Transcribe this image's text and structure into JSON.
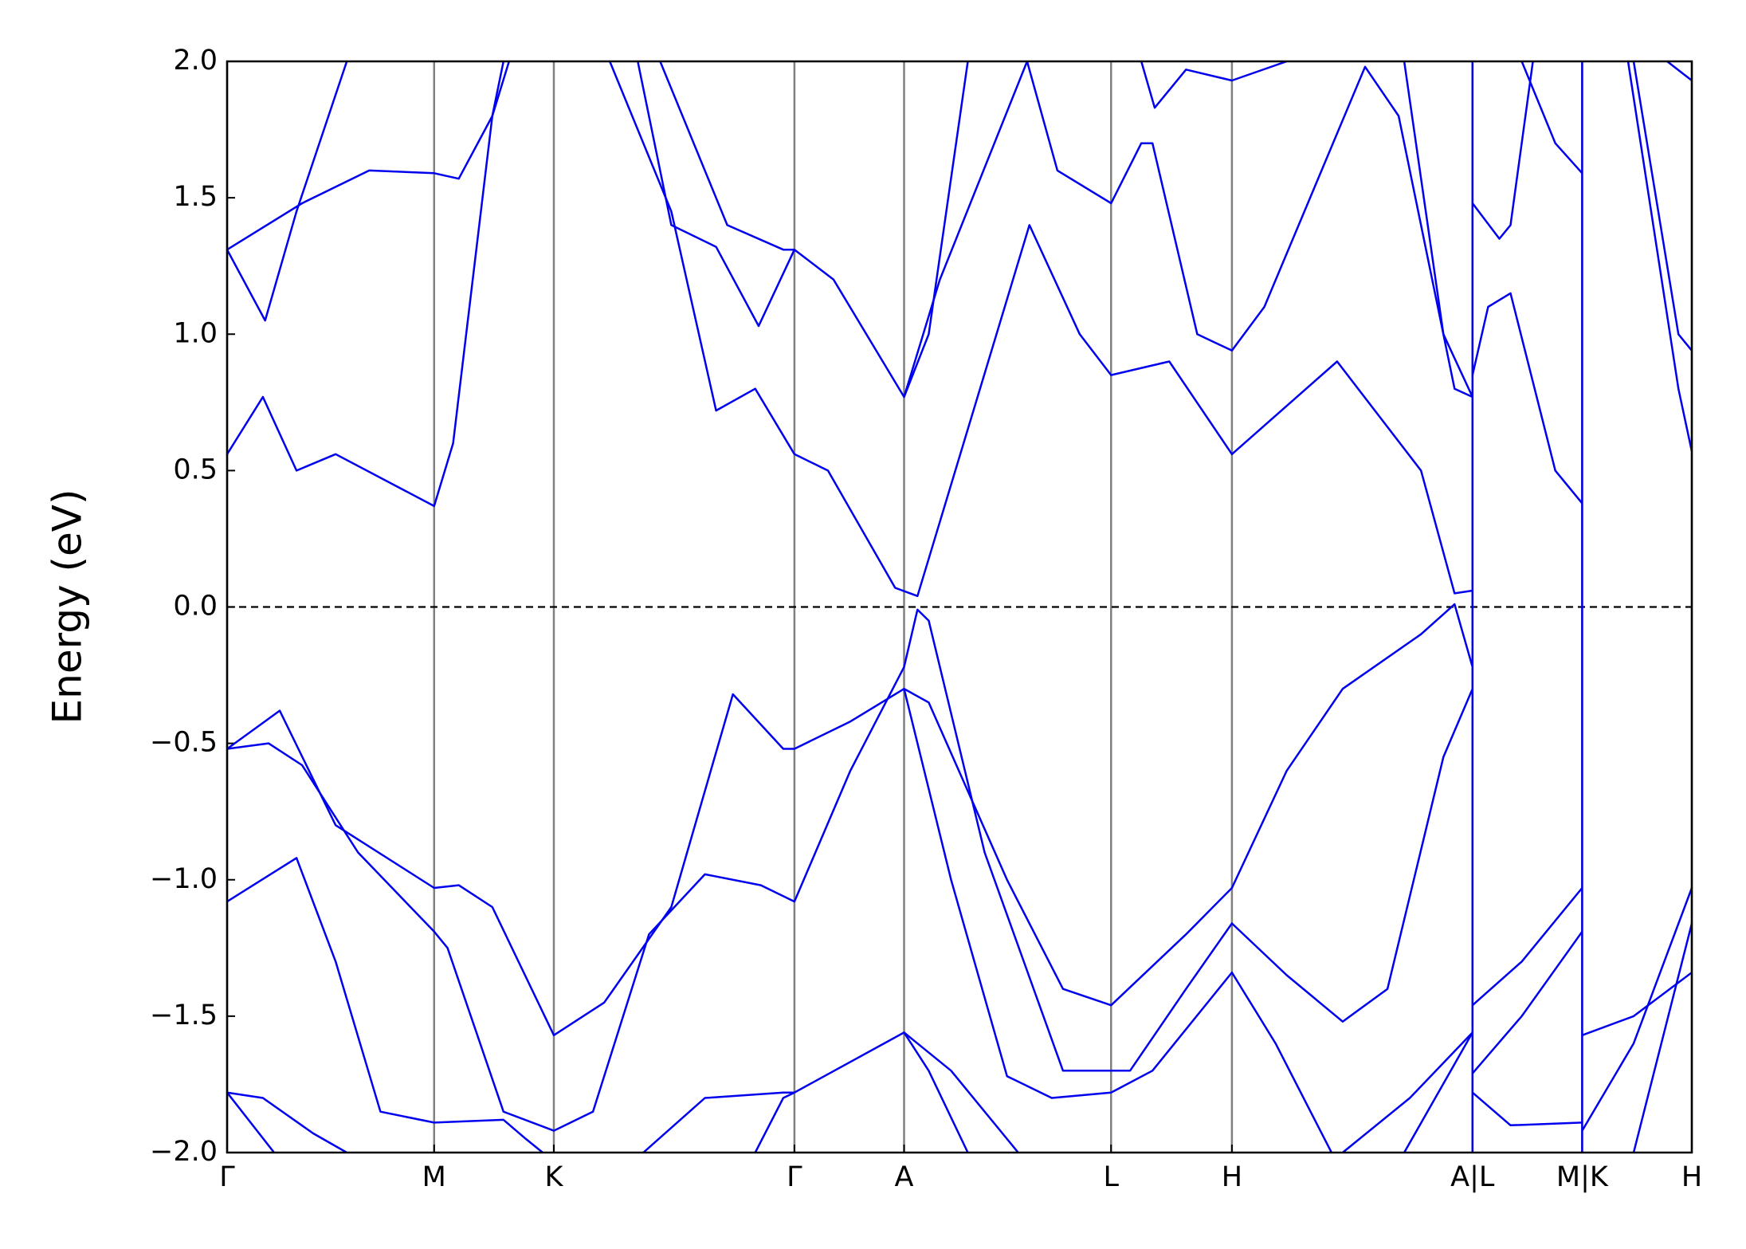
{
  "chart_data": {
    "type": "line",
    "ylabel": "Energy (eV)",
    "color": "#0000ee",
    "grid_color": "#808080",
    "xgrid": true,
    "fermi_level": 0,
    "xlim": [
      0,
      1.309
    ],
    "ylim": [
      -2.0,
      2.0
    ],
    "xticks": [
      {
        "value": 0,
        "label": "Γ"
      },
      {
        "value": 0.185,
        "label": "M"
      },
      {
        "value": 0.292,
        "label": "K"
      },
      {
        "value": 0.507,
        "label": "Γ"
      },
      {
        "value": 0.605,
        "label": "A"
      },
      {
        "value": 0.79,
        "label": "L"
      },
      {
        "value": 0.898,
        "label": "H"
      },
      {
        "value": 1.113,
        "label": "A|L"
      },
      {
        "value": 1.211,
        "label": "M|K"
      },
      {
        "value": 1.309,
        "label": "H"
      }
    ],
    "yticks": [
      {
        "value": 2.0,
        "label": "2.0"
      },
      1.5,
      {
        "value": 1.0,
        "label": "1.0"
      },
      0.5,
      {
        "value": 0.0,
        "label": "0.0"
      },
      {
        "value": -0.5,
        "label": "−0.5"
      },
      {
        "value": -1.0,
        "label": "−1.0"
      },
      {
        "value": -1.5,
        "label": "−1.5"
      },
      {
        "value": -2.0,
        "label": "−2.0"
      }
    ],
    "series": [
      {
        "x": [
          0,
          0.032,
          0.062,
          0.097,
          0.185,
          0.202,
          0.237,
          0.252
        ],
        "values": [
          0.56,
          0.77,
          0.5,
          0.56,
          0.37,
          0.6,
          1.8,
          2.0
        ]
      },
      {
        "x": [
          0,
          0.034,
          0.062,
          0.107
        ],
        "values": [
          1.31,
          1.05,
          1.45,
          2.0
        ]
      },
      {
        "x": [
          0,
          0.067,
          0.127,
          0.185,
          0.207,
          0.237,
          0.247
        ],
        "values": [
          1.31,
          1.48,
          1.6,
          1.59,
          1.57,
          1.8,
          2.0
        ]
      },
      {
        "x": [
          0.342,
          0.397,
          0.437,
          0.472,
          0.507,
          0.537,
          0.597,
          0.617,
          0.717,
          0.762,
          0.79,
          0.842,
          0.898,
          0.992,
          1.067,
          1.097,
          1.113
        ],
        "values": [
          2.0,
          1.45,
          0.72,
          0.8,
          0.56,
          0.5,
          0.07,
          0.04,
          1.4,
          1.0,
          0.85,
          0.9,
          0.56,
          0.9,
          0.5,
          0.05,
          0.06
        ]
      },
      {
        "x": [
          0.367,
          0.397,
          0.437,
          0.475,
          0.507,
          0.542,
          0.605,
          0.637,
          0.715,
          0.742,
          0.79,
          0.817,
          0.827,
          0.867,
          0.898,
          0.927,
          1.017,
          1.047,
          1.097,
          1.113
        ],
        "values": [
          2.0,
          1.4,
          1.32,
          1.03,
          1.31,
          1.2,
          0.77,
          1.2,
          2.0,
          1.6,
          1.48,
          1.7,
          1.7,
          1.0,
          0.94,
          1.1,
          1.98,
          1.8,
          0.8,
          0.77
        ]
      },
      {
        "x": [
          0.387,
          0.447,
          0.497,
          0.507
        ],
        "values": [
          2.0,
          1.4,
          1.31,
          1.31
        ]
      },
      {
        "x": [
          0.605,
          0.627,
          0.662
        ],
        "values": [
          0.77,
          1.0,
          2.0
        ]
      },
      {
        "x": [
          0.817,
          0.829,
          0.857,
          0.898,
          0.947
        ],
        "values": [
          2.0,
          1.83,
          1.97,
          1.93,
          2.0
        ]
      },
      {
        "x": [
          1.052,
          1.087,
          1.113
        ],
        "values": [
          2.0,
          1.0,
          0.77
        ]
      },
      {
        "x": [
          1.113,
          1.127,
          1.147,
          1.187,
          1.211
        ],
        "values": [
          0.85,
          1.1,
          1.15,
          0.5,
          0.38
        ]
      },
      {
        "x": [
          1.113,
          1.137,
          1.147,
          1.167
        ],
        "values": [
          1.48,
          1.35,
          1.4,
          2.0
        ]
      },
      {
        "x": [
          1.157,
          1.187,
          1.211
        ],
        "values": [
          2.0,
          1.7,
          1.59
        ]
      },
      {
        "x": [
          1.252,
          1.297,
          1.309
        ],
        "values": [
          2.0,
          0.8,
          0.57
        ]
      },
      {
        "x": [
          1.257,
          1.297,
          1.309
        ],
        "values": [
          2.0,
          1.0,
          0.94
        ]
      },
      {
        "x": [
          1.287,
          1.309
        ],
        "values": [
          2.0,
          1.93
        ]
      },
      {
        "x": [
          1.113,
          1.113
        ],
        "values": [
          -2.0,
          2.0
        ]
      },
      {
        "x": [
          1.211,
          1.211
        ],
        "values": [
          -2.0,
          2.0
        ]
      },
      {
        "x": [
          0,
          0.047,
          0.097,
          0.185,
          0.207,
          0.237,
          0.292,
          0.337,
          0.397,
          0.452,
          0.497,
          0.507,
          0.557,
          0.605,
          0.627,
          0.697,
          0.747,
          0.79,
          0.857,
          0.898,
          0.947,
          0.997,
          1.067,
          1.097,
          1.113
        ],
        "values": [
          -0.52,
          -0.38,
          -0.8,
          -1.03,
          -1.02,
          -1.1,
          -1.57,
          -1.45,
          -1.1,
          -0.32,
          -0.52,
          -0.52,
          -0.42,
          -0.3,
          -0.35,
          -1.0,
          -1.4,
          -1.46,
          -1.2,
          -1.03,
          -0.6,
          -0.3,
          -0.1,
          0.01,
          -0.22
        ]
      },
      {
        "x": [
          0,
          0.037,
          0.067,
          0.117,
          0.185,
          0.197,
          0.247,
          0.292,
          0.327,
          0.377,
          0.427,
          0.477,
          0.507,
          0.557,
          0.605,
          0.617,
          0.627,
          0.677,
          0.747,
          0.807,
          0.857,
          0.898,
          0.947,
          0.997,
          1.037,
          1.087,
          1.113
        ],
        "values": [
          -0.52,
          -0.5,
          -0.58,
          -0.9,
          -1.19,
          -1.25,
          -1.85,
          -1.92,
          -1.85,
          -1.2,
          -0.98,
          -1.02,
          -1.08,
          -0.6,
          -0.22,
          -0.01,
          -0.05,
          -0.9,
          -1.7,
          -1.7,
          -1.4,
          -1.16,
          -1.35,
          -1.52,
          -1.4,
          -0.55,
          -0.3
        ]
      },
      {
        "x": [
          0,
          0.062,
          0.097,
          0.137,
          0.185,
          0.247,
          0.267,
          0.282
        ],
        "values": [
          -1.08,
          -0.92,
          -1.3,
          -1.85,
          -1.89,
          -1.88,
          -1.95,
          -2.0
        ]
      },
      {
        "x": [
          0,
          0.042
        ],
        "values": [
          -1.78,
          -2.0
        ]
      },
      {
        "x": [
          0,
          0.032,
          0.077,
          0.107
        ],
        "values": [
          -1.78,
          -1.8,
          -1.93,
          -2.0
        ]
      },
      {
        "x": [
          0.372,
          0.427,
          0.497,
          0.507,
          0.605,
          0.647,
          0.707
        ],
        "values": [
          -2.0,
          -1.8,
          -1.78,
          -1.78,
          -1.56,
          -1.7,
          -2.0
        ]
      },
      {
        "x": [
          0.472,
          0.497,
          0.507
        ],
        "values": [
          -2.0,
          -1.8,
          -1.78
        ]
      },
      {
        "x": [
          0.605,
          0.627,
          0.662
        ],
        "values": [
          -1.56,
          -1.7,
          -2.0
        ]
      },
      {
        "x": [
          0.605,
          0.647,
          0.697,
          0.737,
          0.79,
          0.827,
          0.898,
          0.937,
          0.987
        ],
        "values": [
          -0.3,
          -1.0,
          -1.72,
          -1.8,
          -1.78,
          -1.7,
          -1.34,
          -1.6,
          -2.0
        ]
      },
      {
        "x": [
          0.997,
          1.057,
          1.113
        ],
        "values": [
          -2.0,
          -1.8,
          -1.56
        ]
      },
      {
        "x": [
          1.052,
          1.113
        ],
        "values": [
          -2.0,
          -1.56
        ]
      },
      {
        "x": [
          1.113,
          1.157,
          1.211
        ],
        "values": [
          -1.46,
          -1.3,
          -1.03
        ]
      },
      {
        "x": [
          1.113,
          1.157,
          1.211
        ],
        "values": [
          -1.71,
          -1.5,
          -1.19
        ]
      },
      {
        "x": [
          1.113,
          1.147,
          1.211
        ],
        "values": [
          -1.78,
          -1.9,
          -1.89
        ]
      },
      {
        "x": [
          1.211,
          1.257,
          1.309
        ],
        "values": [
          -1.57,
          -1.5,
          -1.34
        ]
      },
      {
        "x": [
          1.211,
          1.257,
          1.309
        ],
        "values": [
          -1.92,
          -1.6,
          -1.03
        ]
      },
      {
        "x": [
          1.257,
          1.309
        ],
        "values": [
          -2.0,
          -1.16
        ]
      }
    ]
  }
}
